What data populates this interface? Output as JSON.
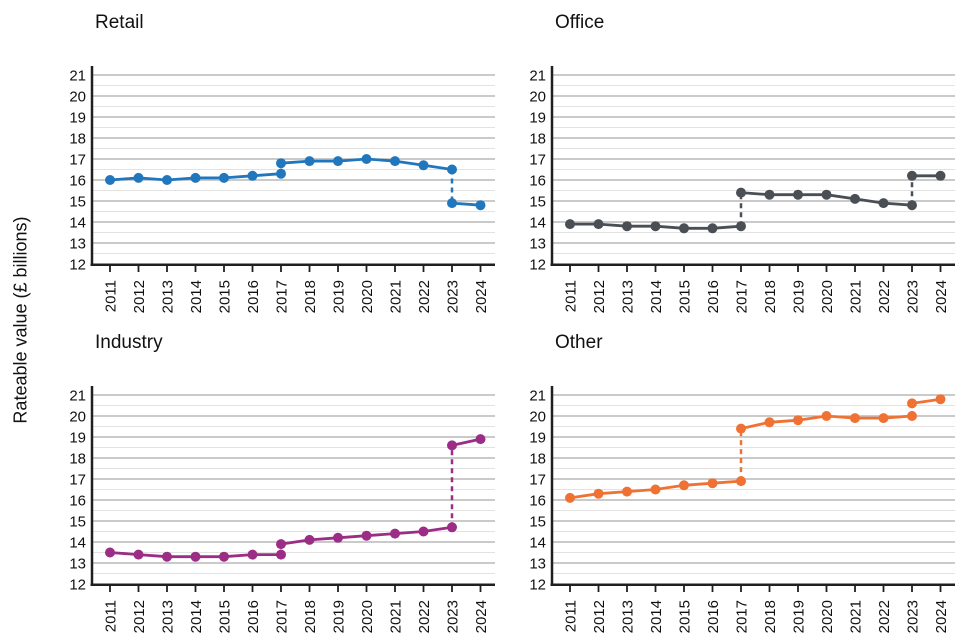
{
  "figure": {
    "y_axis_label": "Rateable value (£ billions)"
  },
  "style": {
    "background": "#ffffff",
    "major_grid": "#ababab",
    "minor_grid": "#e2e2e2",
    "axis_color": "#1f1f1f",
    "text_color": "#111111"
  },
  "chart_data": [
    {
      "type": "line",
      "title": "Retail",
      "color": "#2177bd",
      "ylabel": "Rateable value (£ billions)",
      "ylim": [
        12,
        21
      ],
      "y_ticks": [
        21,
        20,
        19,
        18,
        17,
        16,
        15,
        14,
        13,
        12
      ],
      "x_ticks": [
        "2011",
        "2012",
        "2013",
        "2014",
        "2015",
        "2016",
        "2017",
        "2018",
        "2019",
        "2020",
        "2021",
        "2022",
        "2023",
        "2024"
      ],
      "grid": "on",
      "segments": [
        {
          "start_year": 2011,
          "values": [
            16.0,
            16.1,
            16.0,
            16.1,
            16.1,
            16.2,
            16.3
          ]
        },
        {
          "start_year": 2017,
          "values": [
            16.8,
            16.9,
            16.9,
            17.0,
            16.9,
            16.7,
            16.5
          ]
        },
        {
          "start_year": 2023,
          "values": [
            14.9,
            14.8
          ]
        }
      ],
      "revaluation_joins": [
        {
          "year": 2017,
          "from": 16.3,
          "to": 16.8
        },
        {
          "year": 2023,
          "from": 16.5,
          "to": 14.9
        }
      ]
    },
    {
      "type": "line",
      "title": "Office",
      "color": "#4a4f55",
      "ylabel": "Rateable value (£ billions)",
      "ylim": [
        12,
        21
      ],
      "y_ticks": [
        21,
        20,
        19,
        18,
        17,
        16,
        15,
        14,
        13,
        12
      ],
      "x_ticks": [
        "2011",
        "2012",
        "2013",
        "2014",
        "2015",
        "2016",
        "2017",
        "2018",
        "2019",
        "2020",
        "2021",
        "2022",
        "2023",
        "2024"
      ],
      "grid": "on",
      "segments": [
        {
          "start_year": 2011,
          "values": [
            13.9,
            13.9,
            13.8,
            13.8,
            13.7,
            13.7,
            13.8
          ]
        },
        {
          "start_year": 2017,
          "values": [
            15.4,
            15.3,
            15.3,
            15.3,
            15.1,
            14.9,
            14.8
          ]
        },
        {
          "start_year": 2023,
          "values": [
            16.2,
            16.2
          ]
        }
      ],
      "revaluation_joins": [
        {
          "year": 2017,
          "from": 13.8,
          "to": 15.4
        },
        {
          "year": 2023,
          "from": 14.8,
          "to": 16.2
        }
      ]
    },
    {
      "type": "line",
      "title": "Industry",
      "color": "#9b2d86",
      "ylabel": "Rateable value (£ billions)",
      "ylim": [
        12,
        21
      ],
      "y_ticks": [
        21,
        20,
        19,
        18,
        17,
        16,
        15,
        14,
        13,
        12
      ],
      "x_ticks": [
        "2011",
        "2012",
        "2013",
        "2014",
        "2015",
        "2016",
        "2017",
        "2018",
        "2019",
        "2020",
        "2021",
        "2022",
        "2023",
        "2024"
      ],
      "grid": "on",
      "segments": [
        {
          "start_year": 2011,
          "values": [
            13.5,
            13.4,
            13.3,
            13.3,
            13.3,
            13.4,
            13.4
          ]
        },
        {
          "start_year": 2017,
          "values": [
            13.9,
            14.1,
            14.2,
            14.3,
            14.4,
            14.5,
            14.7
          ]
        },
        {
          "start_year": 2023,
          "values": [
            18.6,
            18.9
          ]
        }
      ],
      "revaluation_joins": [
        {
          "year": 2017,
          "from": 13.4,
          "to": 13.9
        },
        {
          "year": 2023,
          "from": 14.7,
          "to": 18.6
        }
      ]
    },
    {
      "type": "line",
      "title": "Other",
      "color": "#ef7234",
      "ylabel": "Rateable value (£ billions)",
      "ylim": [
        12,
        21
      ],
      "y_ticks": [
        21,
        20,
        19,
        18,
        17,
        16,
        15,
        14,
        13,
        12
      ],
      "x_ticks": [
        "2011",
        "2012",
        "2013",
        "2014",
        "2015",
        "2016",
        "2017",
        "2018",
        "2019",
        "2020",
        "2021",
        "2022",
        "2023",
        "2024"
      ],
      "grid": "on",
      "segments": [
        {
          "start_year": 2011,
          "values": [
            16.1,
            16.3,
            16.4,
            16.5,
            16.7,
            16.8,
            16.9
          ]
        },
        {
          "start_year": 2017,
          "values": [
            19.4,
            19.7,
            19.8,
            20.0,
            19.9,
            19.9,
            20.0
          ]
        },
        {
          "start_year": 2023,
          "values": [
            20.6,
            20.8
          ]
        }
      ],
      "revaluation_joins": [
        {
          "year": 2017,
          "from": 16.9,
          "to": 19.4
        },
        {
          "year": 2023,
          "from": 20.0,
          "to": 20.6
        }
      ]
    }
  ]
}
